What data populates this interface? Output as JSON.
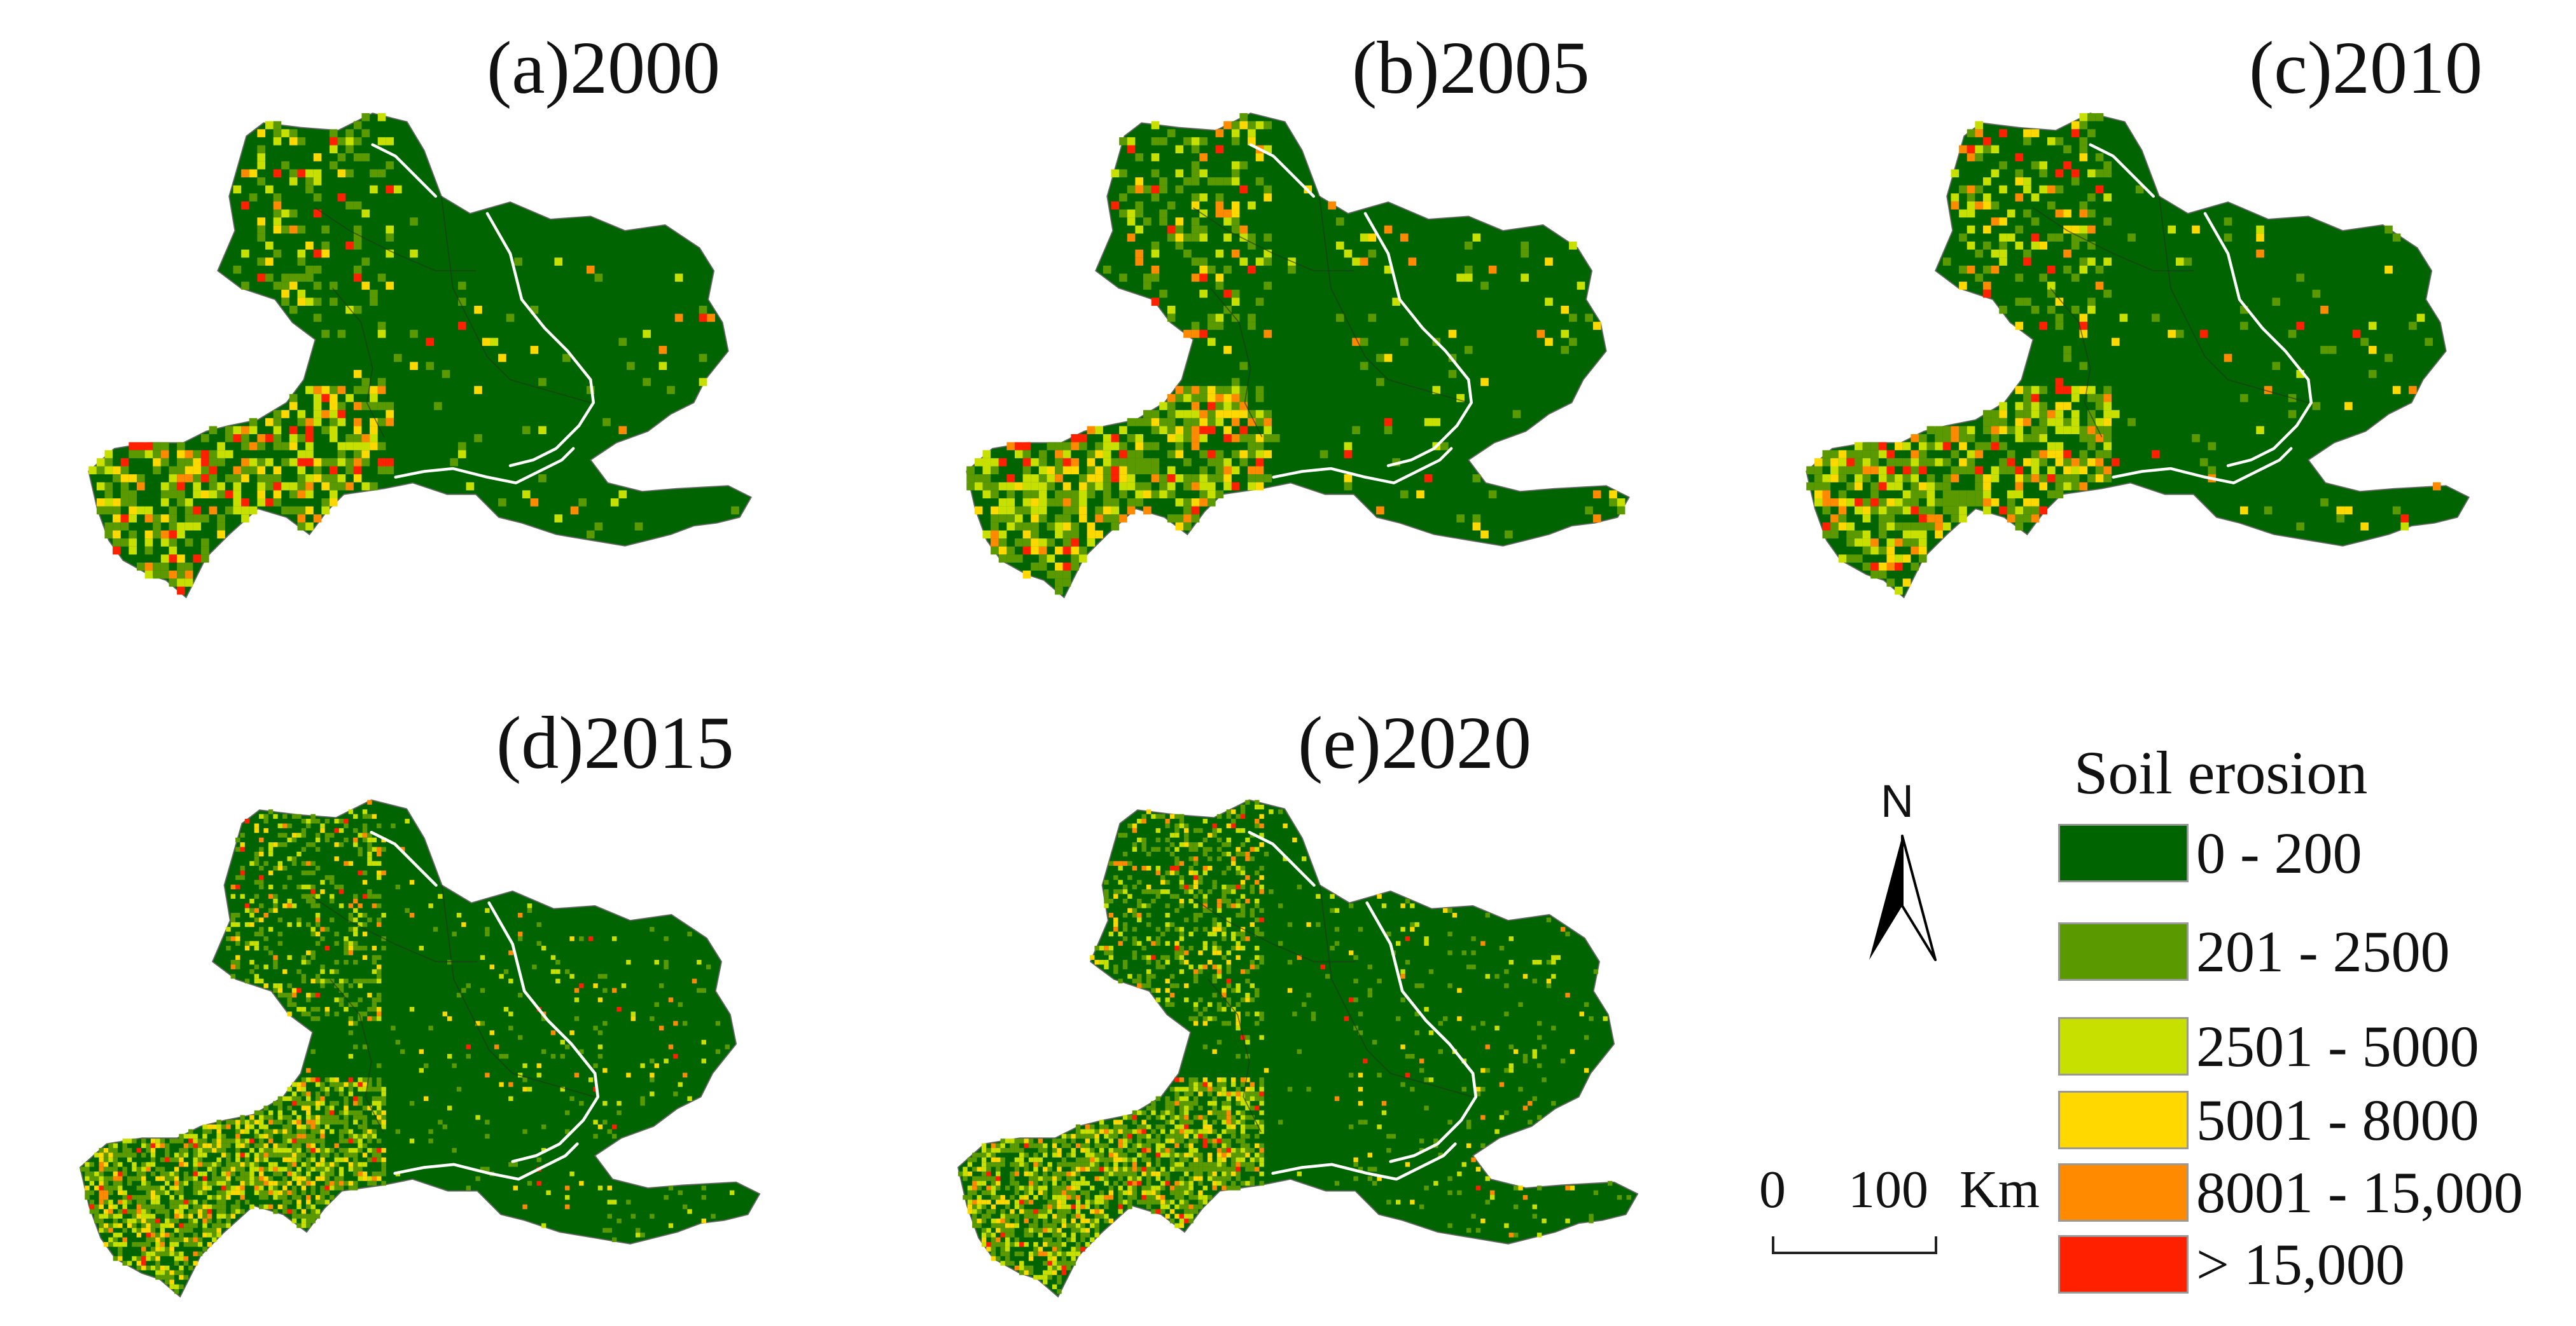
{
  "panels": [
    {
      "id": "a",
      "title": "(a)2000",
      "pattern": "coarse",
      "seed": 11
    },
    {
      "id": "b",
      "title": "(b)2005",
      "pattern": "coarse",
      "seed": 23
    },
    {
      "id": "c",
      "title": "(c)2010",
      "pattern": "coarse",
      "seed": 37
    },
    {
      "id": "d",
      "title": "(d)2015",
      "pattern": "fine",
      "seed": 51
    },
    {
      "id": "e",
      "title": "(e)2020",
      "pattern": "fine",
      "seed": 67
    }
  ],
  "north_arrow": {
    "label": "N"
  },
  "scale_bar": {
    "start": "0",
    "end": "100",
    "unit": "Km"
  },
  "legend": {
    "title": "Soil erosion",
    "items": [
      {
        "label": "0 - 200",
        "color": "#006400"
      },
      {
        "label": "201 - 2500",
        "color": "#5a9a00"
      },
      {
        "label": "2501 - 5000",
        "color": "#c8e000"
      },
      {
        "label": "5001 - 8000",
        "color": "#ffd800"
      },
      {
        "label": "8001 - 15,000",
        "color": "#ff8a00"
      },
      {
        "label": "> 15,000",
        "color": "#ff2000"
      }
    ]
  }
}
